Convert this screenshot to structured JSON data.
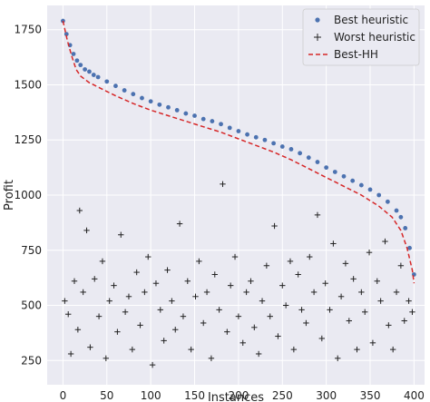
{
  "chart_data": {
    "type": "scatter",
    "title": "",
    "xlabel": "Instances",
    "ylabel": "Profit",
    "xlim": [
      -18,
      412
    ],
    "ylim": [
      140,
      1860
    ],
    "xticks": [
      0,
      50,
      100,
      150,
      200,
      250,
      300,
      350,
      400
    ],
    "yticks": [
      250,
      500,
      750,
      1000,
      1250,
      1500,
      1750
    ],
    "grid": true,
    "legend_position": "top-right",
    "series": [
      {
        "name": "Best heuristic",
        "kind": "points",
        "marker": "dot",
        "color": "#4c72b0",
        "x": [
          0,
          4,
          8,
          12,
          16,
          20,
          25,
          30,
          35,
          40,
          50,
          60,
          70,
          80,
          90,
          100,
          110,
          120,
          130,
          140,
          150,
          160,
          170,
          180,
          190,
          200,
          210,
          220,
          230,
          240,
          250,
          260,
          270,
          280,
          290,
          300,
          310,
          320,
          330,
          340,
          350,
          360,
          370,
          380,
          385,
          390,
          395,
          400
        ],
        "y": [
          1790,
          1730,
          1680,
          1640,
          1610,
          1590,
          1570,
          1560,
          1545,
          1535,
          1515,
          1495,
          1475,
          1458,
          1440,
          1425,
          1410,
          1398,
          1385,
          1370,
          1360,
          1345,
          1335,
          1322,
          1305,
          1290,
          1275,
          1262,
          1250,
          1235,
          1220,
          1208,
          1190,
          1170,
          1150,
          1125,
          1105,
          1085,
          1065,
          1045,
          1025,
          1000,
          970,
          930,
          900,
          850,
          760,
          640
        ]
      },
      {
        "name": "Worst heuristic",
        "kind": "points",
        "marker": "plus",
        "color": "#222222",
        "x": [
          2,
          6,
          9,
          13,
          17,
          19,
          23,
          27,
          31,
          36,
          41,
          45,
          49,
          53,
          58,
          62,
          66,
          71,
          75,
          79,
          84,
          88,
          93,
          97,
          102,
          106,
          111,
          115,
          119,
          124,
          128,
          133,
          137,
          142,
          146,
          151,
          155,
          160,
          164,
          169,
          173,
          178,
          182,
          187,
          191,
          196,
          200,
          205,
          209,
          214,
          218,
          223,
          227,
          232,
          236,
          241,
          245,
          250,
          254,
          259,
          263,
          268,
          272,
          277,
          281,
          286,
          290,
          295,
          299,
          304,
          308,
          313,
          317,
          322,
          326,
          331,
          335,
          340,
          344,
          349,
          353,
          358,
          362,
          367,
          371,
          376,
          380,
          385,
          389,
          394,
          398
        ],
        "y": [
          520,
          460,
          280,
          610,
          390,
          930,
          560,
          840,
          310,
          620,
          450,
          700,
          260,
          520,
          590,
          380,
          820,
          470,
          540,
          300,
          650,
          410,
          560,
          720,
          230,
          600,
          480,
          340,
          660,
          520,
          390,
          870,
          450,
          610,
          300,
          540,
          700,
          420,
          560,
          260,
          640,
          480,
          1050,
          380,
          590,
          720,
          450,
          330,
          560,
          610,
          400,
          280,
          520,
          680,
          450,
          860,
          360,
          590,
          500,
          700,
          300,
          640,
          480,
          420,
          720,
          560,
          910,
          350,
          600,
          480,
          780,
          260,
          540,
          690,
          430,
          620,
          300,
          560,
          470,
          740,
          330,
          610,
          520,
          790,
          410,
          300,
          560,
          680,
          430,
          520,
          470
        ]
      },
      {
        "name": "Best-HH",
        "kind": "line",
        "style": "dashed",
        "color": "#d62728",
        "x": [
          0,
          5,
          10,
          15,
          20,
          30,
          40,
          50,
          60,
          80,
          100,
          120,
          140,
          160,
          180,
          200,
          220,
          240,
          260,
          280,
          300,
          320,
          340,
          360,
          375,
          385,
          392,
          398,
          400
        ],
        "y": [
          1790,
          1700,
          1630,
          1570,
          1540,
          1510,
          1490,
          1470,
          1450,
          1415,
          1385,
          1360,
          1335,
          1310,
          1285,
          1255,
          1225,
          1195,
          1160,
          1120,
          1080,
          1040,
          1000,
          950,
          900,
          840,
          760,
          660,
          600
        ]
      }
    ]
  }
}
